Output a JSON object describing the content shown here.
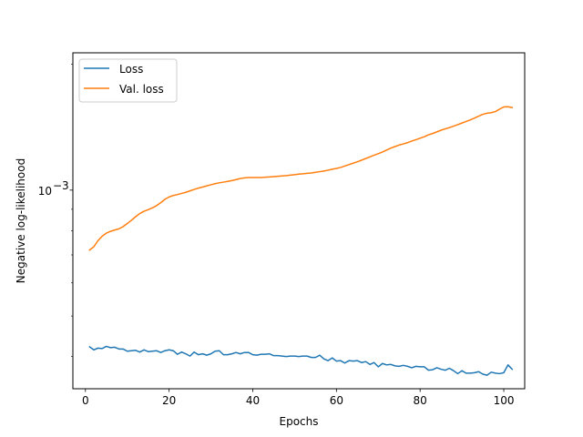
{
  "chart_data": {
    "type": "line",
    "title": "",
    "xlabel": "Epochs",
    "ylabel": "Negative log-likelihood",
    "yscale": "log",
    "xlim": [
      -3,
      105
    ],
    "ylim": [
      0.000335,
      0.00213
    ],
    "xticks": [
      0,
      20,
      40,
      60,
      80,
      100
    ],
    "xtick_labels": [
      "0",
      "20",
      "40",
      "60",
      "80",
      "100"
    ],
    "yticks": [
      0.001
    ],
    "ytick_labels": [
      "10",
      "−3"
    ],
    "grid": false,
    "legend_position": "top-left",
    "series": [
      {
        "name": "Loss",
        "color": "#1f77b4",
        "x": [
          1,
          2,
          3,
          4,
          5,
          6,
          7,
          8,
          9,
          10,
          11,
          12,
          13,
          14,
          15,
          16,
          17,
          18,
          19,
          20,
          21,
          22,
          23,
          24,
          25,
          26,
          27,
          28,
          29,
          30,
          31,
          32,
          33,
          34,
          35,
          36,
          37,
          38,
          39,
          40,
          41,
          42,
          43,
          44,
          45,
          46,
          47,
          48,
          49,
          50,
          51,
          52,
          53,
          54,
          55,
          56,
          57,
          58,
          59,
          60,
          61,
          62,
          63,
          64,
          65,
          66,
          67,
          68,
          69,
          70,
          71,
          72,
          73,
          74,
          75,
          76,
          77,
          78,
          79,
          80,
          81,
          82,
          83,
          84,
          85,
          86,
          87,
          88,
          89,
          90,
          91,
          92,
          93,
          94,
          95,
          96,
          97,
          98,
          99,
          100,
          101,
          102
        ],
        "y": [
          0.000422,
          0.000415,
          0.000419,
          0.000418,
          0.000423,
          0.00042,
          0.000421,
          0.000417,
          0.000417,
          0.000412,
          0.000413,
          0.000414,
          0.00041,
          0.000415,
          0.000411,
          0.000412,
          0.000413,
          0.000409,
          0.000413,
          0.000415,
          0.000413,
          0.000405,
          0.00041,
          0.000406,
          0.000401,
          0.00041,
          0.000404,
          0.000406,
          0.000403,
          0.000406,
          0.000412,
          0.000413,
          0.000404,
          0.000404,
          0.000406,
          0.000409,
          0.000406,
          0.000409,
          0.000409,
          0.000404,
          0.000403,
          0.000405,
          0.000405,
          0.000406,
          0.000402,
          0.000402,
          0.000401,
          0.0004,
          0.000401,
          0.000401,
          0.0004,
          0.000401,
          0.000401,
          0.000398,
          0.000398,
          0.000403,
          0.000395,
          0.000391,
          0.000397,
          0.00039,
          0.000391,
          0.000386,
          0.000391,
          0.00039,
          0.000391,
          0.000387,
          0.000389,
          0.000383,
          0.000387,
          0.000378,
          0.000385,
          0.000382,
          0.000383,
          0.00038,
          0.000379,
          0.000381,
          0.000379,
          0.000376,
          0.000379,
          0.000378,
          0.000378,
          0.000371,
          0.000372,
          0.000376,
          0.000373,
          0.000371,
          0.000375,
          0.00037,
          0.000364,
          0.00037,
          0.000365,
          0.000365,
          0.000366,
          0.000368,
          0.000363,
          0.000361,
          0.000367,
          0.000365,
          0.000364,
          0.000366,
          0.000382,
          0.000373
        ]
      },
      {
        "name": "Val. loss",
        "color": "#ff7f0e",
        "x": [
          1,
          2,
          3,
          4,
          5,
          6,
          7,
          8,
          9,
          10,
          11,
          12,
          13,
          14,
          15,
          16,
          17,
          18,
          19,
          20,
          21,
          22,
          23,
          24,
          25,
          26,
          27,
          28,
          29,
          30,
          31,
          32,
          33,
          34,
          35,
          36,
          37,
          38,
          39,
          40,
          41,
          42,
          43,
          44,
          45,
          46,
          47,
          48,
          49,
          50,
          51,
          52,
          53,
          54,
          55,
          56,
          57,
          58,
          59,
          60,
          61,
          62,
          63,
          64,
          65,
          66,
          67,
          68,
          69,
          70,
          71,
          72,
          73,
          74,
          75,
          76,
          77,
          78,
          79,
          80,
          81,
          82,
          83,
          84,
          85,
          86,
          87,
          88,
          89,
          90,
          91,
          92,
          93,
          94,
          95,
          96,
          97,
          98,
          99,
          100,
          101,
          102
        ],
        "y": [
          0.000719,
          0.000732,
          0.000757,
          0.000776,
          0.000789,
          0.000797,
          0.000803,
          0.000808,
          0.000818,
          0.000832,
          0.000847,
          0.000864,
          0.000879,
          0.00089,
          0.000898,
          0.000907,
          0.000918,
          0.000933,
          0.000951,
          0.000963,
          0.000971,
          0.000976,
          0.000982,
          0.000988,
          0.000996,
          0.001004,
          0.001011,
          0.001017,
          0.001024,
          0.00103,
          0.001036,
          0.001041,
          0.001045,
          0.001049,
          0.001054,
          0.00106,
          0.001066,
          0.00107,
          0.001072,
          0.001072,
          0.001072,
          0.001072,
          0.001074,
          0.001075,
          0.001077,
          0.001079,
          0.001081,
          0.001083,
          0.001086,
          0.001089,
          0.001092,
          0.001094,
          0.001097,
          0.001099,
          0.001103,
          0.001107,
          0.001111,
          0.001116,
          0.001122,
          0.001127,
          0.001133,
          0.001142,
          0.001151,
          0.00116,
          0.001169,
          0.001179,
          0.00119,
          0.001201,
          0.001212,
          0.001222,
          0.001234,
          0.001247,
          0.00126,
          0.001271,
          0.001282,
          0.00129,
          0.001299,
          0.00131,
          0.00132,
          0.001331,
          0.001342,
          0.001356,
          0.001366,
          0.001378,
          0.001391,
          0.001401,
          0.001411,
          0.001422,
          0.001434,
          0.001447,
          0.001459,
          0.001472,
          0.001487,
          0.001503,
          0.001518,
          0.001527,
          0.001532,
          0.001541,
          0.001562,
          0.001581,
          0.001583,
          0.001576
        ]
      }
    ]
  }
}
